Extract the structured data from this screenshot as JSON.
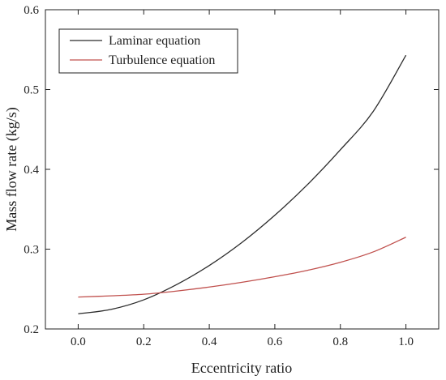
{
  "chart_data": {
    "type": "line",
    "xlabel": "Eccentricity ratio",
    "ylabel": "Mass flow rate (kg/s)",
    "xlim": [
      -0.1,
      1.1
    ],
    "ylim": [
      0.2,
      0.6
    ],
    "xticks": [
      "0.0",
      "0.2",
      "0.4",
      "0.6",
      "0.8",
      "1.0"
    ],
    "yticks": [
      "0.2",
      "0.3",
      "0.4",
      "0.5",
      "0.6"
    ],
    "legend_position": "top-left",
    "grid": false,
    "x": [
      0.0,
      0.1,
      0.2,
      0.3,
      0.4,
      0.5,
      0.6,
      0.7,
      0.8,
      0.9,
      1.0
    ],
    "series": [
      {
        "name": "Laminar equation",
        "color": "#2b2b2b",
        "values": [
          0.219,
          0.2245,
          0.2365,
          0.2555,
          0.2795,
          0.3085,
          0.3425,
          0.381,
          0.4245,
          0.4725,
          0.543
        ]
      },
      {
        "name": "Turbulence equation",
        "color": "#c0504d",
        "values": [
          0.24,
          0.2415,
          0.2435,
          0.2475,
          0.2525,
          0.2585,
          0.2655,
          0.2735,
          0.2835,
          0.2965,
          0.315
        ]
      }
    ]
  }
}
